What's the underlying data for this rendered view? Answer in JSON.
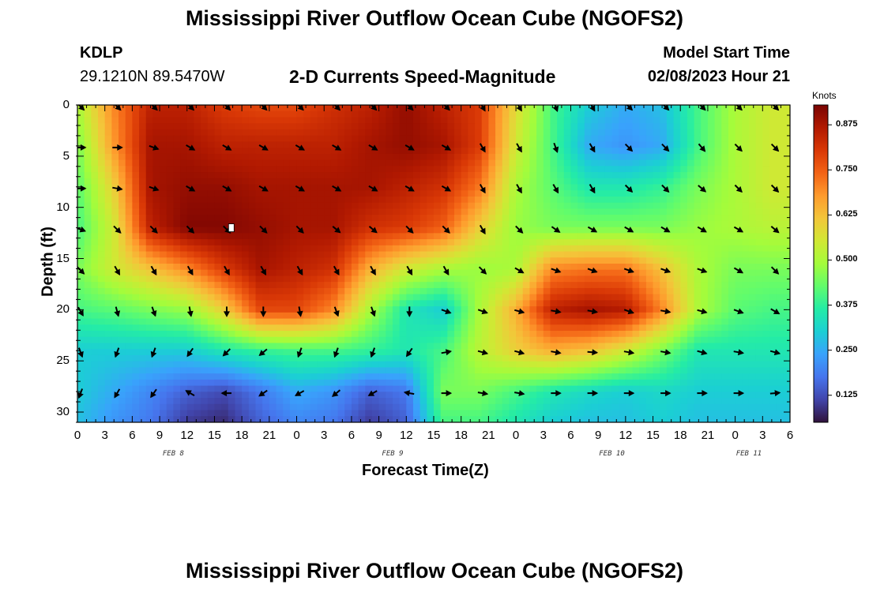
{
  "title": "Mississippi River Outflow Ocean Cube (NGOFS2)",
  "station": {
    "id": "KDLP",
    "coords": "29.1210N  89.5470W"
  },
  "model_start": {
    "label": "Model Start Time",
    "value": "02/08/2023 Hour 21"
  },
  "colors": {
    "background": "#ffffff",
    "text": "#000000",
    "arrow": "#000000"
  },
  "chart_data": {
    "type": "heatmap",
    "title": "2-D Currents Speed-Magnitude",
    "xlabel": "Forecast Time(Z)",
    "ylabel": "Depth (ft)",
    "x_range_hours": [
      0,
      78
    ],
    "y_range_ft": [
      0,
      31
    ],
    "x_tick_labels": [
      "0",
      "3",
      "6",
      "9",
      "12",
      "15",
      "18",
      "21",
      "0",
      "3",
      "6",
      "9",
      "12",
      "15",
      "18",
      "21",
      "0",
      "3",
      "6",
      "9",
      "12",
      "15",
      "18",
      "21",
      "0",
      "3",
      "6"
    ],
    "date_labels": [
      {
        "text": "FEB 8",
        "hour": 10.5
      },
      {
        "text": "FEB 9",
        "hour": 34.5
      },
      {
        "text": "FEB 10",
        "hour": 58.5
      },
      {
        "text": "FEB 11",
        "hour": 73.5
      }
    ],
    "y_ticks": [
      0,
      5,
      10,
      15,
      20,
      25,
      30
    ],
    "colorbar": {
      "label": "Knots",
      "min": 0.05,
      "max": 0.93,
      "ticks": [
        "0.125",
        "0.250",
        "0.375",
        "0.500",
        "0.625",
        "0.750",
        "0.875"
      ],
      "colormap": [
        "#30123b",
        "#4145ab",
        "#4675ed",
        "#39a2fc",
        "#1bcfd4",
        "#24eca6",
        "#61fc6c",
        "#a4fc3b",
        "#d1e834",
        "#f3c63a",
        "#fe9b2d",
        "#f36315",
        "#d93806",
        "#b11901",
        "#7a0402"
      ]
    },
    "speed_grid": {
      "x_hours": [
        0,
        4,
        8,
        12,
        16,
        20,
        24,
        28,
        32,
        36,
        40,
        44,
        48,
        52,
        56,
        60,
        64,
        68,
        72,
        76
      ],
      "depth_ft": [
        0,
        4,
        8,
        12,
        16,
        20,
        24,
        28,
        31
      ],
      "values_knots": [
        [
          0.5,
          0.7,
          0.85,
          0.85,
          0.8,
          0.78,
          0.78,
          0.82,
          0.85,
          0.9,
          0.85,
          0.8,
          0.58,
          0.4,
          0.3,
          0.25,
          0.28,
          0.4,
          0.5,
          0.55
        ],
        [
          0.45,
          0.68,
          0.88,
          0.88,
          0.85,
          0.85,
          0.85,
          0.85,
          0.88,
          0.9,
          0.88,
          0.8,
          0.55,
          0.4,
          0.25,
          0.22,
          0.25,
          0.4,
          0.5,
          0.55
        ],
        [
          0.42,
          0.6,
          0.88,
          0.9,
          0.9,
          0.88,
          0.88,
          0.88,
          0.88,
          0.85,
          0.82,
          0.72,
          0.5,
          0.42,
          0.35,
          0.35,
          0.38,
          0.45,
          0.5,
          0.55
        ],
        [
          0.4,
          0.55,
          0.85,
          0.92,
          0.92,
          0.9,
          0.88,
          0.88,
          0.82,
          0.8,
          0.75,
          0.6,
          0.48,
          0.45,
          0.45,
          0.45,
          0.45,
          0.48,
          0.5,
          0.52
        ],
        [
          0.45,
          0.55,
          0.62,
          0.7,
          0.8,
          0.88,
          0.85,
          0.82,
          0.65,
          0.55,
          0.5,
          0.48,
          0.5,
          0.7,
          0.72,
          0.72,
          0.62,
          0.5,
          0.45,
          0.45
        ],
        [
          0.4,
          0.42,
          0.45,
          0.48,
          0.6,
          0.78,
          0.78,
          0.7,
          0.5,
          0.35,
          0.3,
          0.5,
          0.65,
          0.85,
          0.88,
          0.86,
          0.7,
          0.5,
          0.42,
          0.4
        ],
        [
          0.3,
          0.3,
          0.3,
          0.3,
          0.35,
          0.38,
          0.4,
          0.4,
          0.38,
          0.35,
          0.4,
          0.52,
          0.6,
          0.65,
          0.62,
          0.55,
          0.45,
          0.35,
          0.35,
          0.35
        ],
        [
          0.3,
          0.25,
          0.2,
          0.15,
          0.12,
          0.18,
          0.25,
          0.22,
          0.15,
          0.18,
          0.45,
          0.45,
          0.4,
          0.35,
          0.32,
          0.3,
          0.32,
          0.3,
          0.3,
          0.3
        ],
        [
          0.28,
          0.22,
          0.18,
          0.1,
          0.08,
          0.15,
          0.2,
          0.18,
          0.1,
          0.15,
          0.4,
          0.4,
          0.35,
          0.3,
          0.28,
          0.28,
          0.3,
          0.28,
          0.28,
          0.28
        ]
      ]
    },
    "vectors": {
      "hours": [
        0,
        4,
        8,
        12,
        16,
        20,
        24,
        28,
        32,
        36,
        40,
        44,
        48,
        52,
        56,
        60,
        64,
        68,
        72,
        76
      ],
      "depths_ft": [
        0,
        4,
        8,
        12,
        16,
        20,
        24,
        28
      ],
      "direction_deg_math": [
        [
          -45,
          -45,
          -45,
          -45,
          -45,
          -45,
          -45,
          -45,
          -45,
          -45,
          -45,
          -60,
          -60,
          -70,
          -60,
          -45,
          -45,
          -45,
          -45,
          -45
        ],
        [
          0,
          0,
          -20,
          -30,
          -30,
          -30,
          -30,
          -30,
          -30,
          -30,
          -30,
          -60,
          -60,
          -70,
          -60,
          -45,
          -45,
          -50,
          -45,
          -45
        ],
        [
          0,
          -10,
          -20,
          -30,
          -30,
          -30,
          -30,
          -30,
          -30,
          -30,
          -30,
          -60,
          -60,
          -60,
          -60,
          -45,
          -45,
          -40,
          -45,
          -45
        ],
        [
          -20,
          -45,
          -45,
          -45,
          -45,
          -45,
          -45,
          -40,
          -40,
          -45,
          -45,
          -60,
          -45,
          -35,
          -30,
          -30,
          -30,
          -30,
          -30,
          -40
        ],
        [
          -45,
          -60,
          -60,
          -60,
          -60,
          -60,
          -60,
          -60,
          -60,
          -60,
          -60,
          -45,
          -30,
          -20,
          -20,
          -20,
          -20,
          -20,
          -30,
          -45
        ],
        [
          -60,
          -75,
          -70,
          -80,
          -90,
          -90,
          -80,
          -70,
          -70,
          -90,
          -20,
          -20,
          -15,
          -10,
          -10,
          -20,
          -10,
          -15,
          -20,
          -30
        ],
        [
          -70,
          -110,
          -110,
          -125,
          -135,
          -140,
          -110,
          -110,
          -110,
          -125,
          10,
          -15,
          -15,
          -10,
          -5,
          -10,
          -10,
          -15,
          -10,
          -15
        ],
        [
          -110,
          -120,
          -125,
          150,
          180,
          -145,
          -150,
          -140,
          -150,
          170,
          0,
          -10,
          -10,
          0,
          0,
          0,
          0,
          0,
          0,
          5
        ]
      ]
    },
    "marker": {
      "hour": 16.8,
      "depth_ft": 12
    }
  }
}
